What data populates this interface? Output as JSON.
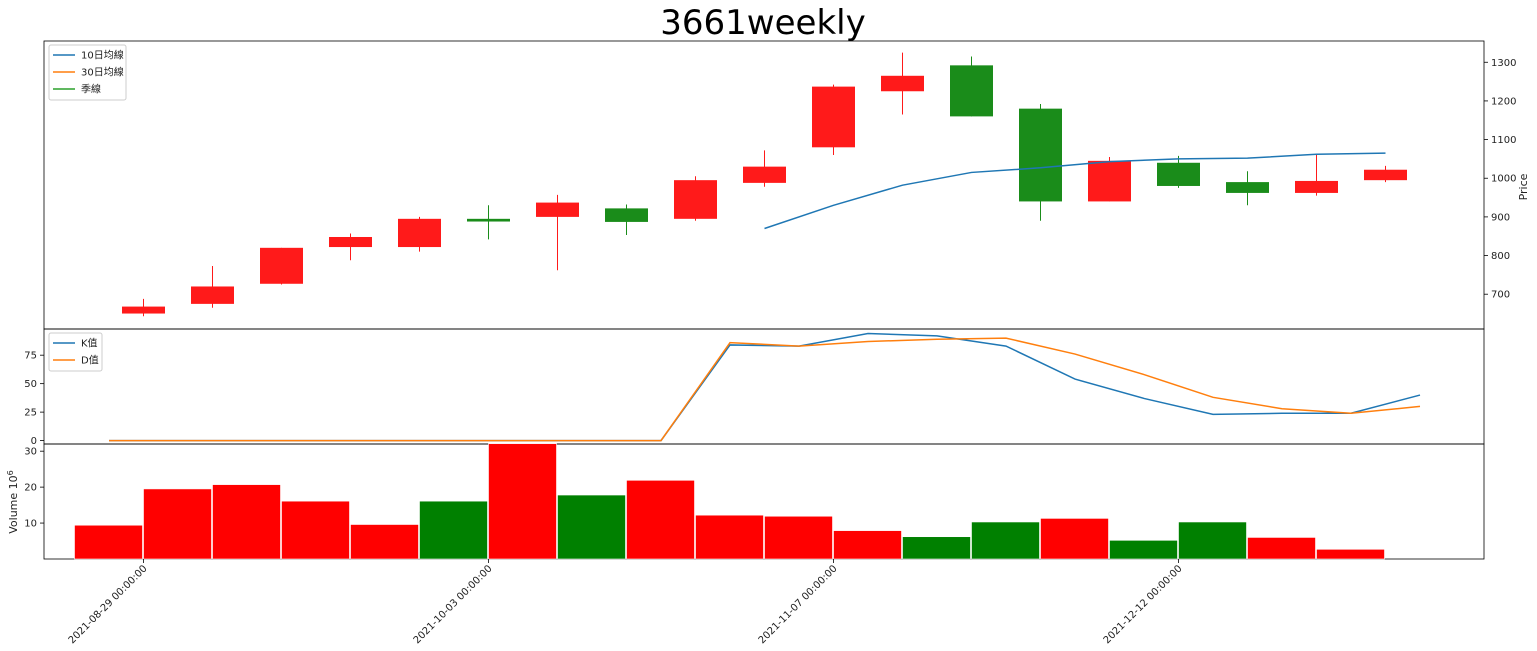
{
  "chart_data": {
    "type": "candlestick",
    "title": "3661weekly",
    "price_axis": {
      "label": "Price",
      "ticks": [
        700,
        800,
        900,
        1000,
        1100,
        1200,
        1300
      ],
      "ylim": [
        610,
        1355
      ]
    },
    "kd_axis": {
      "ticks": [
        0,
        25,
        50,
        75
      ],
      "ylim": [
        -3,
        98
      ]
    },
    "volume_axis": {
      "label": "Volume  10^6",
      "label_base": "Volume  10",
      "label_exp": "6",
      "ticks": [
        10,
        20,
        30
      ],
      "ylim": [
        0,
        32
      ]
    },
    "x_ticks": [
      {
        "index": 0.5,
        "label": "2021-08-29 00:00:00"
      },
      {
        "index": 5.5,
        "label": "2021-10-03 00:00:00"
      },
      {
        "index": 10.5,
        "label": "2021-11-07 00:00:00"
      },
      {
        "index": 15.5,
        "label": "2021-12-12 00:00:00"
      }
    ],
    "candles": [
      {
        "open": 650,
        "close": 668,
        "high": 688,
        "low": 643
      },
      {
        "open": 675,
        "close": 720,
        "high": 773,
        "low": 665
      },
      {
        "open": 727,
        "close": 820,
        "high": 820,
        "low": 725
      },
      {
        "open": 822,
        "close": 848,
        "high": 857,
        "low": 788
      },
      {
        "open": 822,
        "close": 895,
        "high": 900,
        "low": 810
      },
      {
        "open": 895,
        "close": 888,
        "high": 930,
        "low": 842
      },
      {
        "open": 900,
        "close": 937,
        "high": 957,
        "low": 762
      },
      {
        "open": 922,
        "close": 887,
        "high": 932,
        "low": 853
      },
      {
        "open": 895,
        "close": 995,
        "high": 1005,
        "low": 890
      },
      {
        "open": 988,
        "close": 1030,
        "high": 1072,
        "low": 978
      },
      {
        "open": 1080,
        "close": 1237,
        "high": 1242,
        "low": 1060
      },
      {
        "open": 1225,
        "close": 1265,
        "high": 1325,
        "low": 1165
      },
      {
        "open": 1292,
        "close": 1160,
        "high": 1315,
        "low": 1160
      },
      {
        "open": 1180,
        "close": 940,
        "high": 1192,
        "low": 890
      },
      {
        "open": 940,
        "close": 1045,
        "high": 1055,
        "low": 940
      },
      {
        "open": 1040,
        "close": 980,
        "high": 1058,
        "low": 975
      },
      {
        "open": 990,
        "close": 962,
        "high": 1018,
        "low": 930
      },
      {
        "open": 962,
        "close": 993,
        "high": 1060,
        "low": 955
      },
      {
        "open": 995,
        "close": 1022,
        "high": 1032,
        "low": 990
      }
    ],
    "series": [
      {
        "name": "10日均線",
        "color": "#1f77b4",
        "start": 9,
        "values": [
          870,
          930,
          982,
          1015,
          1027,
          1043,
          1050,
          1052,
          1062,
          1065
        ]
      },
      {
        "name": "30日均線",
        "color": "#ff7f0e",
        "values": []
      },
      {
        "name": "季線",
        "color": "#2ca02c",
        "values": []
      }
    ],
    "kd": {
      "x_start": -0.5,
      "K": {
        "name": "K值",
        "color": "#1f77b4",
        "values": [
          0,
          0,
          0,
          0,
          0,
          0,
          0,
          0,
          0,
          84,
          83,
          94,
          92,
          83,
          54,
          37,
          23,
          24,
          24,
          40
        ]
      },
      "D": {
        "name": "D值",
        "color": "#ff7f0e",
        "values": [
          0,
          0,
          0,
          0,
          0,
          0,
          0,
          0,
          0,
          86,
          83,
          87,
          89,
          90,
          76,
          58,
          38,
          28,
          24,
          30
        ]
      }
    },
    "volume": {
      "values": [
        9.4,
        19.5,
        20.7,
        16.1,
        9.6,
        16.1,
        32.1,
        17.8,
        21.9,
        12.2,
        11.9,
        7.9,
        6.2,
        10.3,
        11.3,
        5.2,
        10.3,
        6.0,
        2.7
      ],
      "colors": [
        "red",
        "red",
        "red",
        "red",
        "red",
        "green",
        "red",
        "green",
        "red",
        "red",
        "red",
        "red",
        "green",
        "green",
        "red",
        "green",
        "green",
        "red",
        "red"
      ]
    },
    "legend_position": "upper-left",
    "up_color": "#ff1a1a",
    "down_color": "#1a8c1a",
    "grid": false
  }
}
